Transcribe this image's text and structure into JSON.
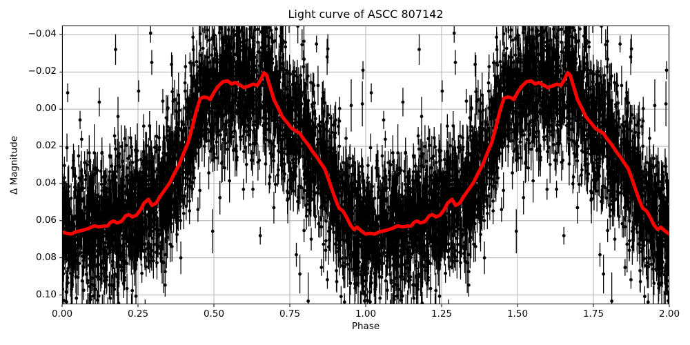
{
  "chart_data": {
    "type": "scatter",
    "title": "Light curve of ASCC 807142",
    "xlabel": "Phase",
    "ylabel": "Δ Magnitude",
    "xlim": [
      0,
      2
    ],
    "ylim_top": -0.045,
    "ylim_bottom": 0.105,
    "y_axis_inverted": true,
    "grid": true,
    "xticks": [
      0,
      0.25,
      0.5,
      0.75,
      1,
      1.25,
      1.5,
      1.75,
      2
    ],
    "yticks": [
      -0.04,
      -0.02,
      0,
      0.02,
      0.04,
      0.06,
      0.08,
      0.1
    ],
    "colors": {
      "background": "#ffffff",
      "grid": "#b0b0b0",
      "spine": "#000000",
      "scatter": "#000000",
      "mean_curve": "#ff0000"
    },
    "series": [
      {
        "name": "photometric-points-with-errorbars",
        "type": "scatter_errorbar",
        "color": "#000000",
        "marker_radius": 2.4,
        "errorbar_line_width": 1.3,
        "n_points_per_cycle": 3200,
        "phase_duplicated_offset": 1,
        "noise_sigma": 0.017,
        "outlier_fraction": 0.08,
        "outlier_sigma": 0.035,
        "errorbar_base": 0.0045,
        "errorbar_spread": 0.0045,
        "seed": 42
      },
      {
        "name": "smoothed-mean-light-curve",
        "type": "line",
        "color": "#ff0000",
        "line_width": 5,
        "cycle_points": [
          [
            0.0,
            0.066
          ],
          [
            0.015,
            0.0668
          ],
          [
            0.03,
            0.0672
          ],
          [
            0.045,
            0.066
          ],
          [
            0.06,
            0.0655
          ],
          [
            0.075,
            0.0648
          ],
          [
            0.09,
            0.064
          ],
          [
            0.105,
            0.0628
          ],
          [
            0.12,
            0.0633
          ],
          [
            0.135,
            0.063
          ],
          [
            0.15,
            0.0628
          ],
          [
            0.16,
            0.0608
          ],
          [
            0.17,
            0.0602
          ],
          [
            0.18,
            0.0612
          ],
          [
            0.195,
            0.0605
          ],
          [
            0.21,
            0.0573
          ],
          [
            0.22,
            0.0568
          ],
          [
            0.232,
            0.058
          ],
          [
            0.245,
            0.057
          ],
          [
            0.258,
            0.0542
          ],
          [
            0.27,
            0.0505
          ],
          [
            0.284,
            0.0485
          ],
          [
            0.296,
            0.0518
          ],
          [
            0.31,
            0.0505
          ],
          [
            0.325,
            0.0465
          ],
          [
            0.34,
            0.043
          ],
          [
            0.355,
            0.0395
          ],
          [
            0.37,
            0.0345
          ],
          [
            0.385,
            0.03
          ],
          [
            0.4,
            0.0238
          ],
          [
            0.415,
            0.018
          ],
          [
            0.43,
            0.009
          ],
          [
            0.442,
            0.001
          ],
          [
            0.455,
            -0.0058
          ],
          [
            0.468,
            -0.0065
          ],
          [
            0.478,
            -0.0062
          ],
          [
            0.488,
            -0.0052
          ],
          [
            0.5,
            -0.009
          ],
          [
            0.515,
            -0.0125
          ],
          [
            0.53,
            -0.0148
          ],
          [
            0.545,
            -0.0152
          ],
          [
            0.558,
            -0.0136
          ],
          [
            0.572,
            -0.0143
          ],
          [
            0.585,
            -0.013
          ],
          [
            0.6,
            -0.0116
          ],
          [
            0.614,
            -0.0124
          ],
          [
            0.63,
            -0.0135
          ],
          [
            0.643,
            -0.0128
          ],
          [
            0.655,
            -0.016
          ],
          [
            0.665,
            -0.0196
          ],
          [
            0.673,
            -0.0185
          ],
          [
            0.685,
            -0.012
          ],
          [
            0.698,
            -0.005
          ],
          [
            0.712,
            -0.0005
          ],
          [
            0.725,
            0.004
          ],
          [
            0.74,
            0.007
          ],
          [
            0.755,
            0.01
          ],
          [
            0.77,
            0.0118
          ],
          [
            0.782,
            0.0128
          ],
          [
            0.795,
            0.016
          ],
          [
            0.81,
            0.019
          ],
          [
            0.825,
            0.0228
          ],
          [
            0.84,
            0.026
          ],
          [
            0.852,
            0.029
          ],
          [
            0.865,
            0.0322
          ],
          [
            0.878,
            0.038
          ],
          [
            0.89,
            0.0438
          ],
          [
            0.902,
            0.0492
          ],
          [
            0.912,
            0.0532
          ],
          [
            0.925,
            0.0548
          ],
          [
            0.938,
            0.0585
          ],
          [
            0.95,
            0.0625
          ],
          [
            0.962,
            0.0648
          ],
          [
            0.972,
            0.0635
          ],
          [
            0.985,
            0.0655
          ],
          [
            1.0,
            0.0672
          ]
        ]
      }
    ]
  }
}
